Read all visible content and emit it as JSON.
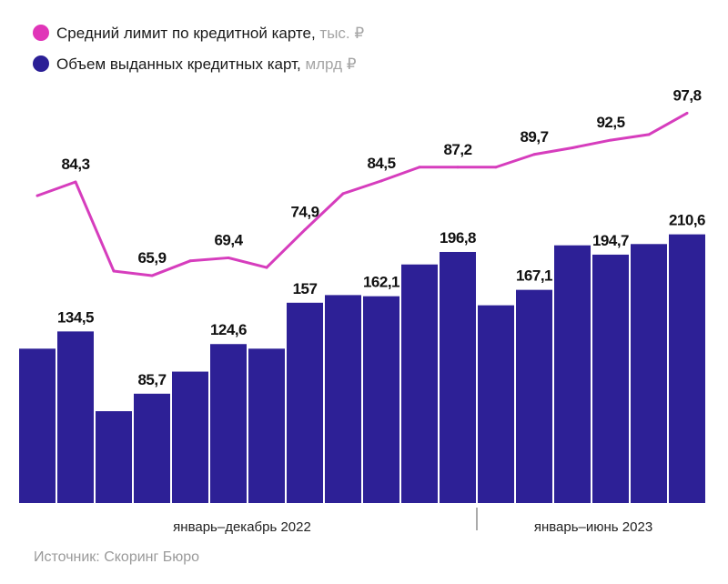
{
  "legend": [
    {
      "label": "Средний лимит по кредитной карте,",
      "unit": "тыс. ₽",
      "color": "#e035b8"
    },
    {
      "label": "Объем выданных кредитных карт,",
      "unit": "млрд ₽",
      "color": "#2b1f96"
    }
  ],
  "periods": [
    "январь–декабрь 2022",
    "январь–июнь 2023"
  ],
  "source": "Источник: Скоринг Бюро",
  "chart_data": {
    "type": "bar+line",
    "colors": {
      "bars": "#2d2096",
      "line": "#d63dbd"
    },
    "grid": false,
    "legend_placement": "top-left",
    "bars": {
      "name": "Объем выданных кредитных карт, млрд ₽",
      "values": [
        121,
        134.5,
        72,
        85.7,
        103,
        124.6,
        121,
        157,
        163,
        162.1,
        187,
        196.8,
        155,
        167.1,
        202,
        194.7,
        203,
        210.6
      ],
      "labels": [
        null,
        "134,5",
        null,
        "85,7",
        null,
        "124,6",
        null,
        "157",
        null,
        "162,1",
        null,
        "196,8",
        null,
        "167,1",
        null,
        "194,7",
        null,
        "210,6"
      ]
    },
    "line": {
      "name": "Средний лимит по кредитной карте, тыс. ₽",
      "values": [
        81.6,
        84.3,
        66.8,
        65.9,
        68.8,
        69.4,
        67.5,
        74.9,
        82.0,
        84.5,
        87.2,
        87.2,
        87.2,
        89.7,
        91.0,
        92.5,
        93.6,
        97.8
      ],
      "labels": [
        null,
        "84,3",
        null,
        "65,9",
        null,
        "69,4",
        null,
        "74,9",
        null,
        "84,5",
        null,
        "87,2",
        null,
        "89,7",
        null,
        "92,5",
        null,
        "97,8"
      ]
    }
  }
}
